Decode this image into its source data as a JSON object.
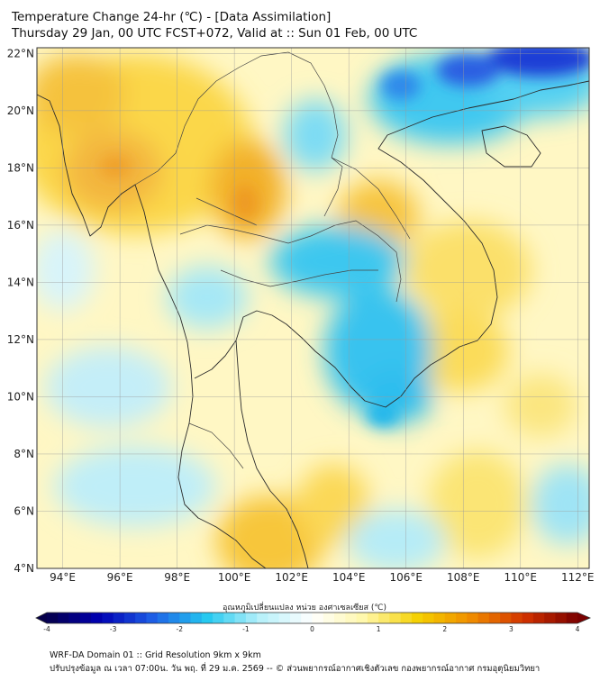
{
  "title": {
    "line1": "Temperature Change 24-hr (℃) - [Data Assimilation]",
    "line2": "Thursday 29 Jan, 00 UTC FCST+072, Valid at :: Sun 01 Feb, 00 UTC"
  },
  "axes": {
    "lat_labels": [
      "22°N",
      "20°N",
      "18°N",
      "16°N",
      "14°N",
      "12°N",
      "10°N",
      "8°N",
      "6°N",
      "4°N"
    ],
    "lat_values": [
      22,
      20,
      18,
      16,
      14,
      12,
      10,
      8,
      6,
      4
    ],
    "lon_labels": [
      "94°E",
      "96°E",
      "98°E",
      "100°E",
      "102°E",
      "104°E",
      "106°E",
      "108°E",
      "110°E",
      "112°E"
    ],
    "lon_values": [
      94,
      96,
      98,
      100,
      102,
      104,
      106,
      108,
      110,
      112
    ],
    "lon_range": [
      93.1,
      112.4
    ],
    "lat_range": [
      4.0,
      22.2
    ]
  },
  "colorbar": {
    "label": "อุณหภูมิเปลี่ยนแปลง หน่วย องศาเซลเซียส (℃)",
    "ticks": [
      "-4",
      "-3",
      "-2",
      "-1",
      "0",
      "1",
      "2",
      "3",
      "4"
    ],
    "tick_values": [
      -4,
      -3,
      -2,
      -1,
      0,
      1,
      2,
      3,
      4
    ],
    "range": [
      -4,
      4
    ],
    "stops": [
      "#06004a",
      "#0000b4",
      "#1e5fe6",
      "#23c8f0",
      "#b4f0fa",
      "#ffffff",
      "#fff7a8",
      "#f5d000",
      "#f08c00",
      "#d23200",
      "#7a0000"
    ]
  },
  "footer": {
    "line1": "WRF-DA Domain 01 :: Grid Resolution 9km x 9km",
    "line2": "ปรับปรุงข้อมูล ณ เวลา 07:00น. วัน พฤ. ที่ 29 ม.ค. 2569 -- © ส่วนพยากรณ์อากาศเชิงตัวเลข กองพยากรณ์อากาศ กรมอุตุนิยมวิทยา"
  },
  "colors": {
    "warm": "#f6c420",
    "warm_light": "#fff3a0",
    "cool": "#29c6f0",
    "cool_light": "#c6f2fa",
    "cold": "#1c3ad8",
    "coastline": "#333333"
  }
}
